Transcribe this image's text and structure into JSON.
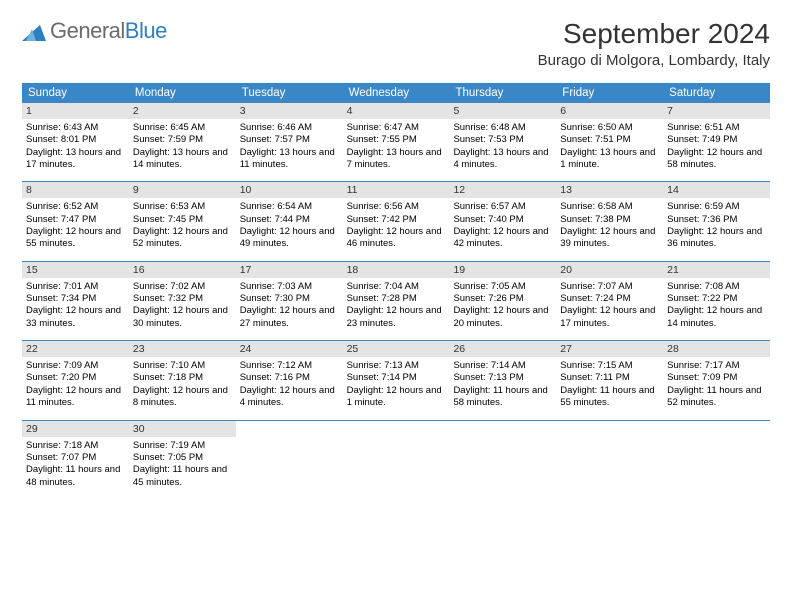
{
  "brand": {
    "partA": "General",
    "partB": "Blue"
  },
  "header": {
    "month_title": "September 2024",
    "location": "Burago di Molgora, Lombardy, Italy"
  },
  "colors": {
    "header_bg": "#3a87c7",
    "header_text": "#ffffff",
    "daynum_bg": "#e4e4e4",
    "week_border": "#3a87c7",
    "logo_gray": "#6b6b6b",
    "logo_blue": "#2f7fc0",
    "page_bg": "#ffffff"
  },
  "typography": {
    "title_fontsize": 28,
    "location_fontsize": 15,
    "dayheader_fontsize": 11.5,
    "daynum_fontsize": 10.5,
    "celltext_fontsize": 9.5,
    "font_family": "Arial"
  },
  "layout": {
    "columns": 7,
    "rows": 5
  },
  "day_headers": [
    "Sunday",
    "Monday",
    "Tuesday",
    "Wednesday",
    "Thursday",
    "Friday",
    "Saturday"
  ],
  "weeks": [
    [
      {
        "n": "1",
        "sr": "Sunrise: 6:43 AM",
        "ss": "Sunset: 8:01 PM",
        "dl": "Daylight: 13 hours and 17 minutes."
      },
      {
        "n": "2",
        "sr": "Sunrise: 6:45 AM",
        "ss": "Sunset: 7:59 PM",
        "dl": "Daylight: 13 hours and 14 minutes."
      },
      {
        "n": "3",
        "sr": "Sunrise: 6:46 AM",
        "ss": "Sunset: 7:57 PM",
        "dl": "Daylight: 13 hours and 11 minutes."
      },
      {
        "n": "4",
        "sr": "Sunrise: 6:47 AM",
        "ss": "Sunset: 7:55 PM",
        "dl": "Daylight: 13 hours and 7 minutes."
      },
      {
        "n": "5",
        "sr": "Sunrise: 6:48 AM",
        "ss": "Sunset: 7:53 PM",
        "dl": "Daylight: 13 hours and 4 minutes."
      },
      {
        "n": "6",
        "sr": "Sunrise: 6:50 AM",
        "ss": "Sunset: 7:51 PM",
        "dl": "Daylight: 13 hours and 1 minute."
      },
      {
        "n": "7",
        "sr": "Sunrise: 6:51 AM",
        "ss": "Sunset: 7:49 PM",
        "dl": "Daylight: 12 hours and 58 minutes."
      }
    ],
    [
      {
        "n": "8",
        "sr": "Sunrise: 6:52 AM",
        "ss": "Sunset: 7:47 PM",
        "dl": "Daylight: 12 hours and 55 minutes."
      },
      {
        "n": "9",
        "sr": "Sunrise: 6:53 AM",
        "ss": "Sunset: 7:45 PM",
        "dl": "Daylight: 12 hours and 52 minutes."
      },
      {
        "n": "10",
        "sr": "Sunrise: 6:54 AM",
        "ss": "Sunset: 7:44 PM",
        "dl": "Daylight: 12 hours and 49 minutes."
      },
      {
        "n": "11",
        "sr": "Sunrise: 6:56 AM",
        "ss": "Sunset: 7:42 PM",
        "dl": "Daylight: 12 hours and 46 minutes."
      },
      {
        "n": "12",
        "sr": "Sunrise: 6:57 AM",
        "ss": "Sunset: 7:40 PM",
        "dl": "Daylight: 12 hours and 42 minutes."
      },
      {
        "n": "13",
        "sr": "Sunrise: 6:58 AM",
        "ss": "Sunset: 7:38 PM",
        "dl": "Daylight: 12 hours and 39 minutes."
      },
      {
        "n": "14",
        "sr": "Sunrise: 6:59 AM",
        "ss": "Sunset: 7:36 PM",
        "dl": "Daylight: 12 hours and 36 minutes."
      }
    ],
    [
      {
        "n": "15",
        "sr": "Sunrise: 7:01 AM",
        "ss": "Sunset: 7:34 PM",
        "dl": "Daylight: 12 hours and 33 minutes."
      },
      {
        "n": "16",
        "sr": "Sunrise: 7:02 AM",
        "ss": "Sunset: 7:32 PM",
        "dl": "Daylight: 12 hours and 30 minutes."
      },
      {
        "n": "17",
        "sr": "Sunrise: 7:03 AM",
        "ss": "Sunset: 7:30 PM",
        "dl": "Daylight: 12 hours and 27 minutes."
      },
      {
        "n": "18",
        "sr": "Sunrise: 7:04 AM",
        "ss": "Sunset: 7:28 PM",
        "dl": "Daylight: 12 hours and 23 minutes."
      },
      {
        "n": "19",
        "sr": "Sunrise: 7:05 AM",
        "ss": "Sunset: 7:26 PM",
        "dl": "Daylight: 12 hours and 20 minutes."
      },
      {
        "n": "20",
        "sr": "Sunrise: 7:07 AM",
        "ss": "Sunset: 7:24 PM",
        "dl": "Daylight: 12 hours and 17 minutes."
      },
      {
        "n": "21",
        "sr": "Sunrise: 7:08 AM",
        "ss": "Sunset: 7:22 PM",
        "dl": "Daylight: 12 hours and 14 minutes."
      }
    ],
    [
      {
        "n": "22",
        "sr": "Sunrise: 7:09 AM",
        "ss": "Sunset: 7:20 PM",
        "dl": "Daylight: 12 hours and 11 minutes."
      },
      {
        "n": "23",
        "sr": "Sunrise: 7:10 AM",
        "ss": "Sunset: 7:18 PM",
        "dl": "Daylight: 12 hours and 8 minutes."
      },
      {
        "n": "24",
        "sr": "Sunrise: 7:12 AM",
        "ss": "Sunset: 7:16 PM",
        "dl": "Daylight: 12 hours and 4 minutes."
      },
      {
        "n": "25",
        "sr": "Sunrise: 7:13 AM",
        "ss": "Sunset: 7:14 PM",
        "dl": "Daylight: 12 hours and 1 minute."
      },
      {
        "n": "26",
        "sr": "Sunrise: 7:14 AM",
        "ss": "Sunset: 7:13 PM",
        "dl": "Daylight: 11 hours and 58 minutes."
      },
      {
        "n": "27",
        "sr": "Sunrise: 7:15 AM",
        "ss": "Sunset: 7:11 PM",
        "dl": "Daylight: 11 hours and 55 minutes."
      },
      {
        "n": "28",
        "sr": "Sunrise: 7:17 AM",
        "ss": "Sunset: 7:09 PM",
        "dl": "Daylight: 11 hours and 52 minutes."
      }
    ],
    [
      {
        "n": "29",
        "sr": "Sunrise: 7:18 AM",
        "ss": "Sunset: 7:07 PM",
        "dl": "Daylight: 11 hours and 48 minutes."
      },
      {
        "n": "30",
        "sr": "Sunrise: 7:19 AM",
        "ss": "Sunset: 7:05 PM",
        "dl": "Daylight: 11 hours and 45 minutes."
      },
      null,
      null,
      null,
      null,
      null
    ]
  ]
}
